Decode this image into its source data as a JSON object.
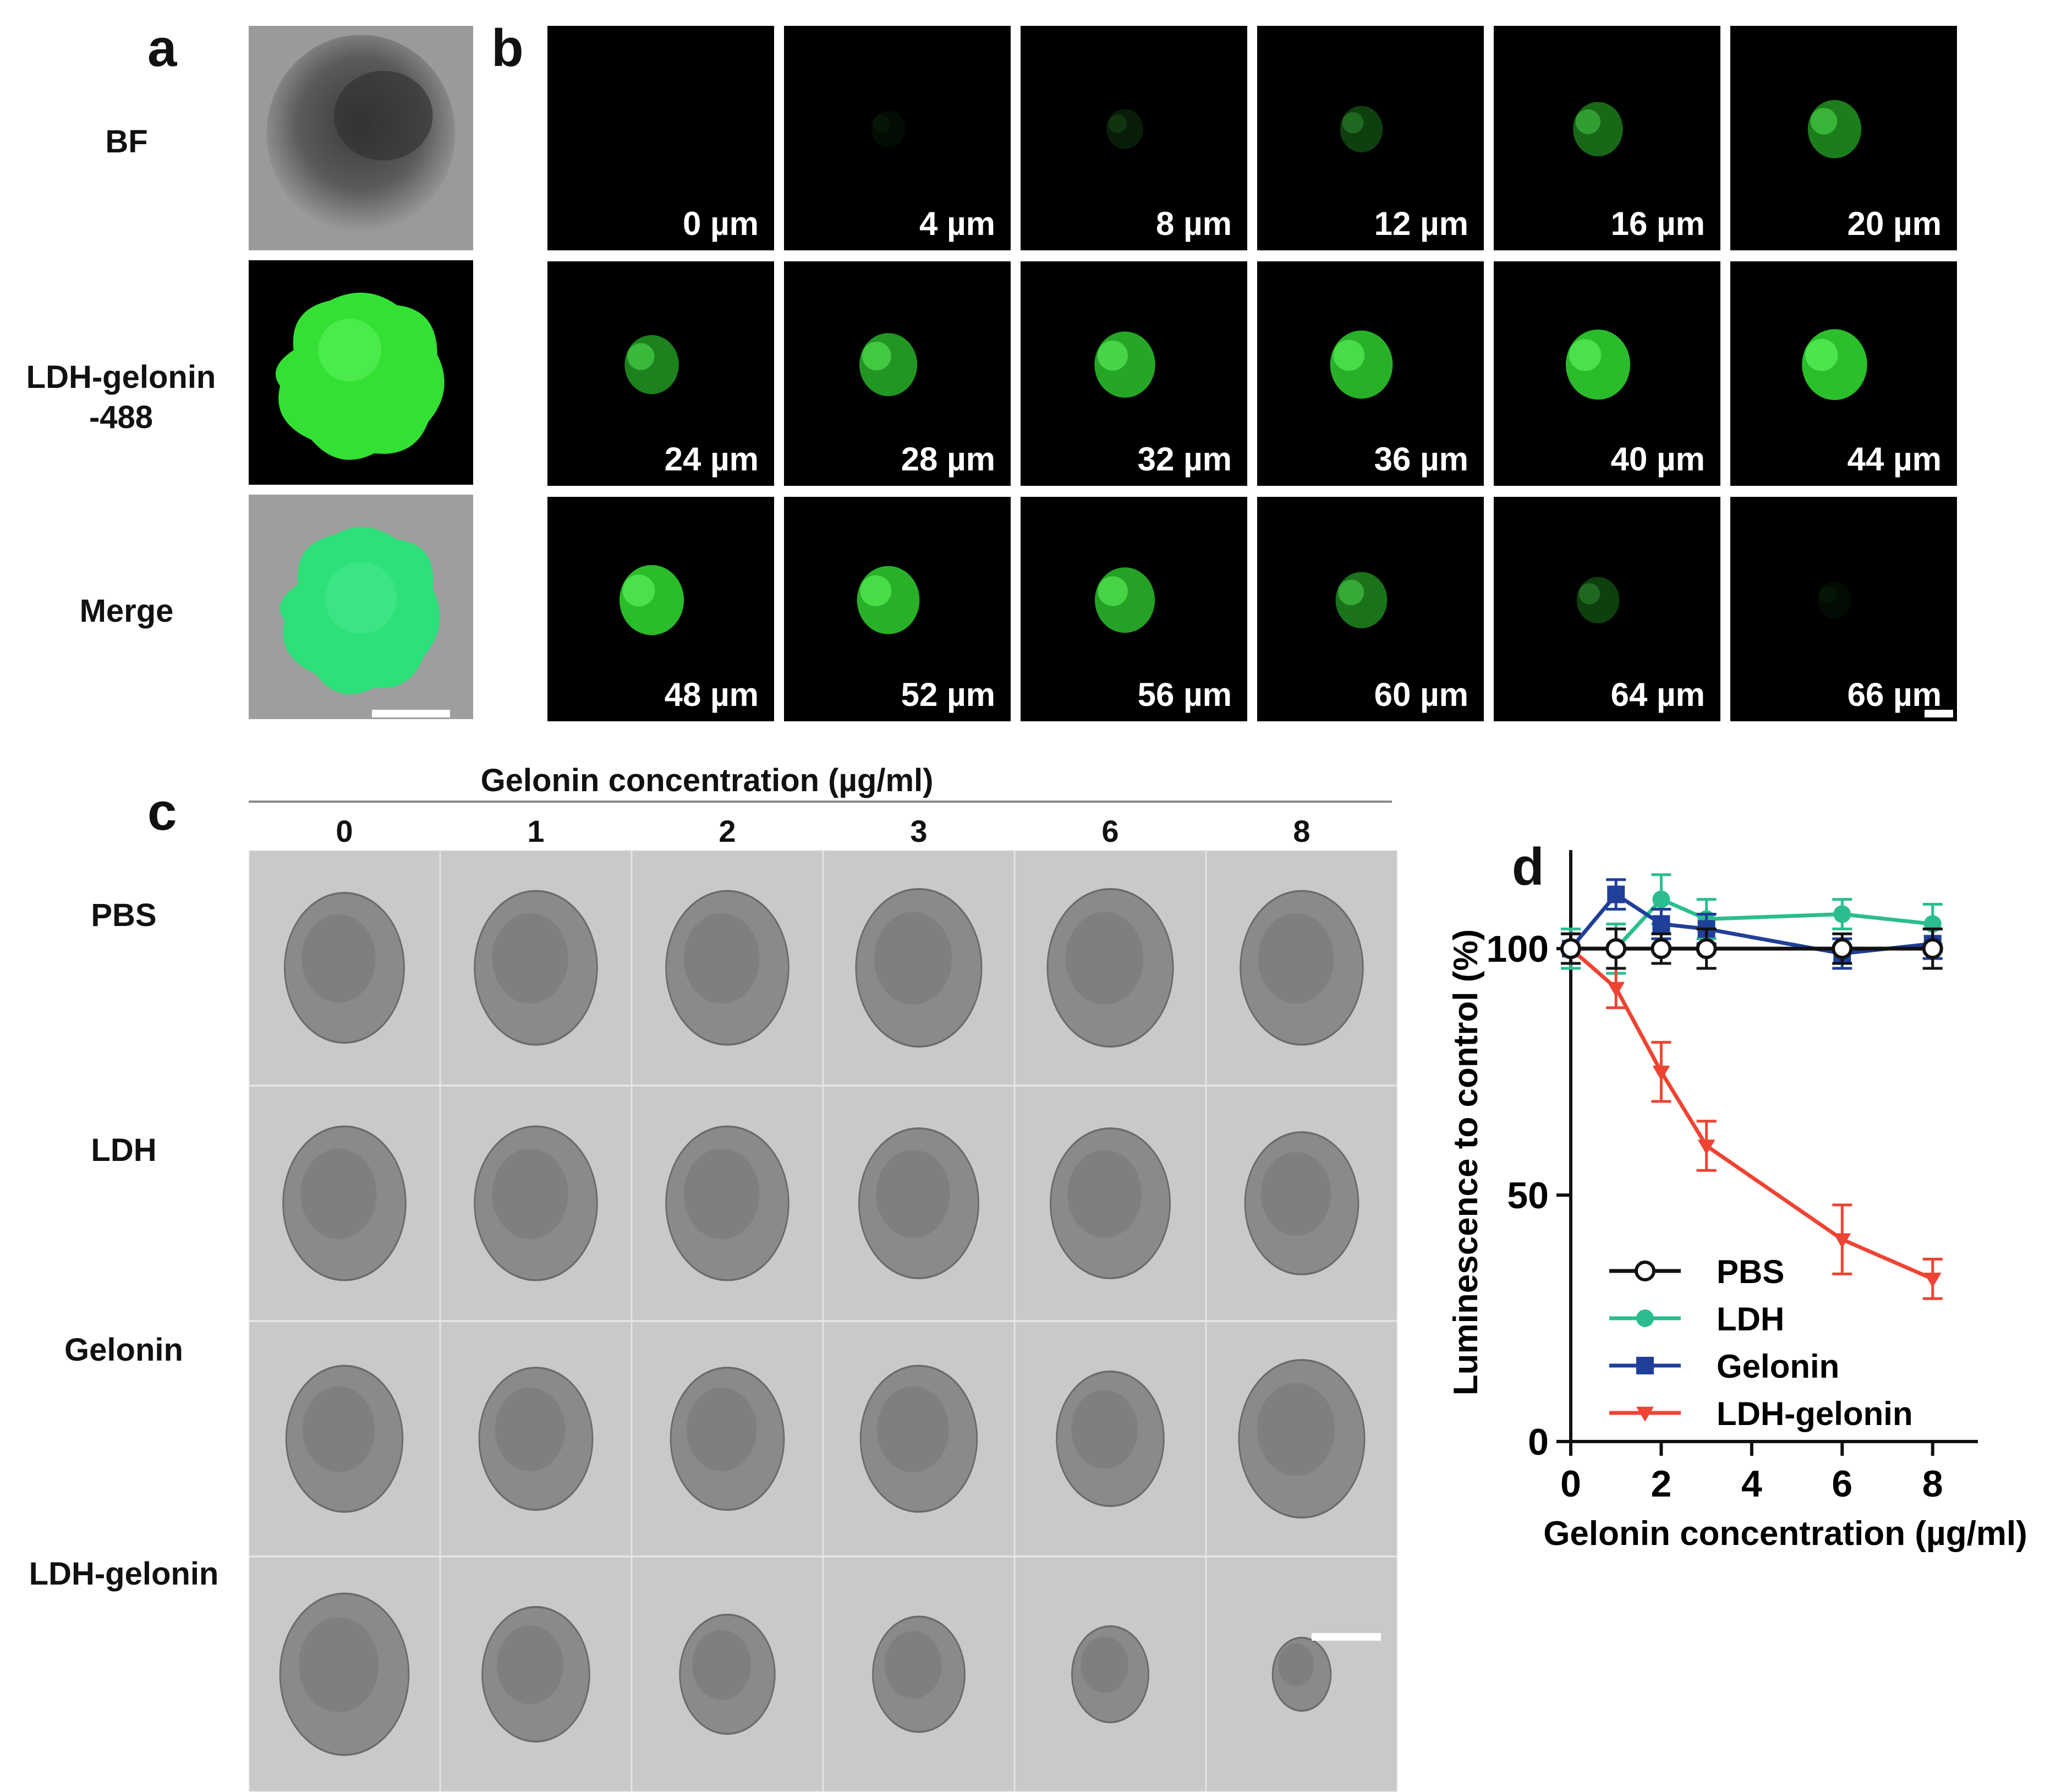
{
  "panel_letters": {
    "a": "a",
    "b": "b",
    "c": "c",
    "d": "d"
  },
  "panel_a": {
    "rows": [
      {
        "label": "BF",
        "kind": "bf"
      },
      {
        "label": "LDH-gelonin\n-488",
        "kind": "fluor"
      },
      {
        "label": "Merge",
        "kind": "merge"
      }
    ]
  },
  "panel_b": {
    "slices": [
      {
        "depth": "0 µm",
        "intensity": 0.0
      },
      {
        "depth": "4 µm",
        "intensity": 0.06
      },
      {
        "depth": "8 µm",
        "intensity": 0.14
      },
      {
        "depth": "12 µm",
        "intensity": 0.3
      },
      {
        "depth": "16 µm",
        "intensity": 0.5
      },
      {
        "depth": "20 µm",
        "intensity": 0.6
      },
      {
        "depth": "24 µm",
        "intensity": 0.62
      },
      {
        "depth": "28 µm",
        "intensity": 0.72
      },
      {
        "depth": "32 µm",
        "intensity": 0.8
      },
      {
        "depth": "36 µm",
        "intensity": 0.85
      },
      {
        "depth": "40 µm",
        "intensity": 0.9
      },
      {
        "depth": "44 µm",
        "intensity": 0.92
      },
      {
        "depth": "48 µm",
        "intensity": 0.9
      },
      {
        "depth": "52 µm",
        "intensity": 0.85
      },
      {
        "depth": "56 µm",
        "intensity": 0.78
      },
      {
        "depth": "60 µm",
        "intensity": 0.55
      },
      {
        "depth": "64 µm",
        "intensity": 0.3
      },
      {
        "depth": "66 µm",
        "intensity": 0.06
      }
    ]
  },
  "panel_c": {
    "header": "Gelonin concentration (µg/ml)",
    "concentrations": [
      "0",
      "1",
      "2",
      "3",
      "6",
      "8"
    ],
    "rows": [
      {
        "label": "PBS",
        "sizes": [
          0.78,
          0.8,
          0.8,
          0.82,
          0.82,
          0.8
        ]
      },
      {
        "label": "LDH",
        "sizes": [
          0.8,
          0.8,
          0.8,
          0.78,
          0.78,
          0.74
        ]
      },
      {
        "label": "Gelonin",
        "sizes": [
          0.76,
          0.74,
          0.74,
          0.76,
          0.7,
          0.82
        ]
      },
      {
        "label": "LDH-gelonin",
        "sizes": [
          0.84,
          0.7,
          0.62,
          0.6,
          0.5,
          0.38
        ]
      }
    ]
  },
  "chart_data": {
    "type": "line",
    "title": "",
    "xlabel": "Gelonin concentration (µg/ml)",
    "ylabel": "Luminescence to control (%)",
    "xlim": [
      0,
      9
    ],
    "ylim": [
      0,
      120
    ],
    "xticks": [
      0,
      2,
      4,
      6,
      8
    ],
    "yticks": [
      0,
      50,
      100
    ],
    "grid": false,
    "legend_position": "bottom-left",
    "x": [
      0,
      1,
      2,
      3,
      6,
      8
    ],
    "series": [
      {
        "name": "PBS",
        "color": "#111111",
        "marker": "open-circle",
        "values": [
          100,
          100,
          100,
          100,
          100,
          100
        ],
        "errors": [
          3,
          4,
          3,
          4,
          3,
          4
        ]
      },
      {
        "name": "LDH",
        "color": "#2bbd8f",
        "marker": "circle",
        "values": [
          100,
          100,
          110,
          106,
          107,
          105
        ],
        "errors": [
          4,
          5,
          5,
          4,
          3,
          4
        ]
      },
      {
        "name": "Gelonin",
        "color": "#1f3f99",
        "marker": "square",
        "values": [
          100,
          111,
          105,
          104,
          99,
          101
        ],
        "errors": [
          3,
          3,
          3,
          3,
          3,
          3
        ]
      },
      {
        "name": "LDH-gelonin",
        "color": "#ee4433",
        "marker": "triangle-down",
        "values": [
          100,
          92,
          75,
          60,
          41,
          33
        ],
        "errors": [
          3,
          4,
          6,
          5,
          7,
          4
        ]
      }
    ]
  }
}
